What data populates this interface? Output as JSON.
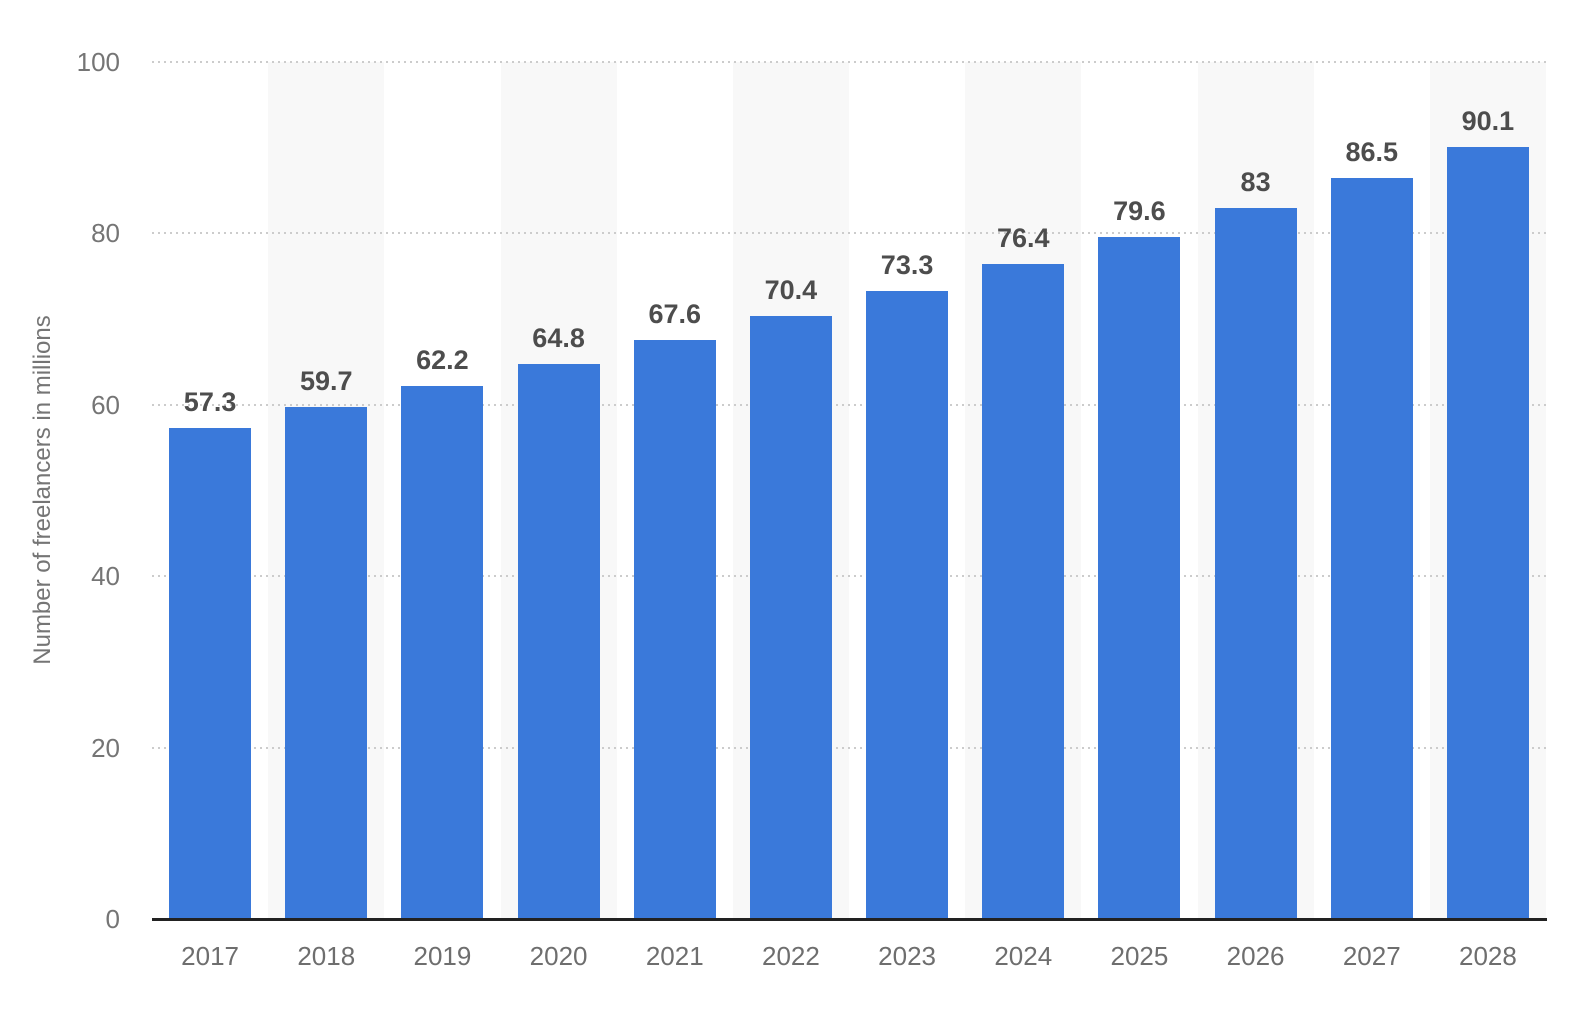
{
  "chart_data": {
    "type": "bar",
    "title": "",
    "categories": [
      "2017",
      "2018",
      "2019",
      "2020",
      "2021",
      "2022",
      "2023",
      "2024",
      "2025",
      "2026",
      "2027",
      "2028"
    ],
    "values": [
      57.3,
      59.7,
      62.2,
      64.8,
      67.6,
      70.4,
      73.3,
      76.4,
      79.6,
      83,
      86.5,
      90.1
    ],
    "value_labels": [
      "57.3",
      "59.7",
      "62.2",
      "64.8",
      "67.6",
      "70.4",
      "73.3",
      "76.4",
      "79.6",
      "83",
      "86.5",
      "90.1"
    ],
    "xlabel": "",
    "ylabel": "Number of freelancers in millions",
    "ylim": [
      0,
      100
    ],
    "yticks": [
      0,
      20,
      40,
      60,
      80,
      100
    ],
    "grid": "horizontal-dotted",
    "legend_position": "none",
    "striped_columns": "alternating, starting with second column",
    "colors": {
      "bar": "#3a79da",
      "value_label": "#4d4d4d",
      "tick_label": "#757575",
      "axis_line": "#222222",
      "gridline": "#cccccc",
      "column_stripe": "#f8f8f8",
      "background": "#ffffff"
    }
  }
}
